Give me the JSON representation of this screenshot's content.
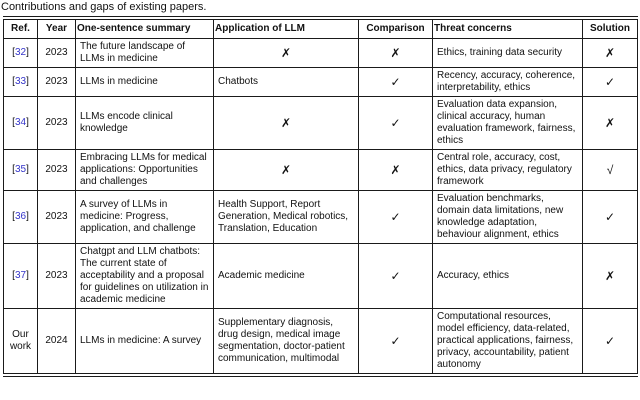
{
  "caption": "Contributions and gaps of existing papers.",
  "colors": {
    "citation_blue": "#3434c9",
    "border": "#1a1a1a",
    "background": "#ffffff"
  },
  "marks": {
    "cross": "✗",
    "check": "✓",
    "surd": "√"
  },
  "table": {
    "columns": [
      {
        "key": "ref",
        "label": "Ref."
      },
      {
        "key": "year",
        "label": "Year"
      },
      {
        "key": "summary",
        "label": "One-sentence summary"
      },
      {
        "key": "application",
        "label": "Application of LLM"
      },
      {
        "key": "comparison",
        "label": "Comparison"
      },
      {
        "key": "threats",
        "label": "Threat concerns"
      },
      {
        "key": "solution",
        "label": "Solution"
      }
    ],
    "rows": [
      {
        "ref": {
          "pre": "[",
          "label": "32",
          "post": "]",
          "link": true
        },
        "year": "2023",
        "summary": "The future landscape of LLMs in medicine",
        "application": "✗",
        "comparison": "✗",
        "threats": "Ethics, training data security",
        "solution": "✗"
      },
      {
        "ref": {
          "pre": "[",
          "label": "33",
          "post": "]",
          "link": true
        },
        "year": "2023",
        "summary": "LLMs in medicine",
        "application": "Chatbots",
        "comparison": "✓",
        "threats": "Recency, accuracy, coherence, interpretability, ethics",
        "solution": "✓"
      },
      {
        "ref": {
          "pre": "[",
          "label": "34",
          "post": "]",
          "link": true
        },
        "year": "2023",
        "summary": "LLMs encode clinical knowledge",
        "application": "✗",
        "comparison": "✓",
        "threats": "Evaluation data expansion, clinical accuracy, human evaluation framework, fairness, ethics",
        "solution": "✗"
      },
      {
        "ref": {
          "pre": "[",
          "label": "35",
          "post": "]",
          "link": true
        },
        "year": "2023",
        "summary": "Embracing LLMs for medical applications: Opportunities and challenges",
        "application": "✗",
        "comparison": "✗",
        "threats": "Central role, accuracy, cost, ethics, data privacy, regulatory framework",
        "solution": "√"
      },
      {
        "ref": {
          "pre": "[",
          "label": "36",
          "post": "]",
          "link": true
        },
        "year": "2023",
        "summary": "A survey of LLMs in medicine: Progress, application, and challenge",
        "application": "Health Support, Report Generation, Medical robotics, Translation, Education",
        "comparison": "✓",
        "threats": "Evaluation benchmarks, domain data limitations, new knowledge adaptation, behaviour alignment, ethics",
        "solution": "✓"
      },
      {
        "ref": {
          "pre": "[",
          "label": "37",
          "post": "]",
          "link": true
        },
        "year": "2023",
        "summary": "Chatgpt and LLM chatbots: The current state of acceptability and a proposal for guidelines on utilization in academic medicine",
        "application": "Academic medicine",
        "comparison": "✓",
        "threats": "Accuracy, ethics",
        "solution": "✗"
      },
      {
        "ref": {
          "pre": "",
          "label": "Our work",
          "post": "",
          "link": false
        },
        "year": "2024",
        "summary": "LLMs in medicine: A survey",
        "application": "Supplementary diagnosis, drug design, medical image segmentation, doctor-patient communication, multimodal",
        "comparison": "✓",
        "threats": "Computational resources, model efficiency, data-related, practical applications, fairness, privacy, accountability, patient autonomy",
        "solution": "✓"
      }
    ]
  }
}
